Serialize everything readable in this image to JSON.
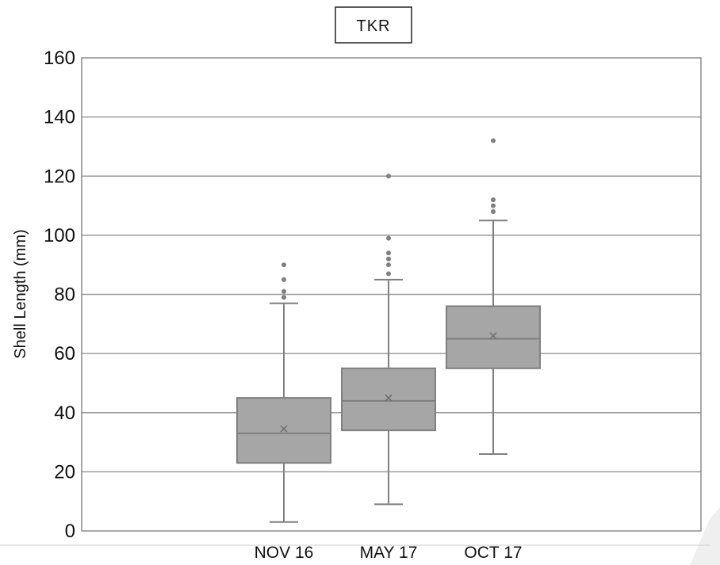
{
  "chart_data": {
    "type": "box",
    "title": "TKR",
    "ylabel": "Shell Length (mm)",
    "xlabel": "",
    "ylim": [
      0,
      160
    ],
    "yticks": [
      0,
      20,
      40,
      60,
      80,
      100,
      120,
      140,
      160
    ],
    "grid": true,
    "legend": "none",
    "box_color": "#a6a6a6",
    "categories": [
      "NOV 16",
      "MAY 17",
      "OCT 17"
    ],
    "boxes": [
      {
        "category": "NOV 16",
        "min": 3,
        "q1": 23,
        "median": 33,
        "q3": 45,
        "max": 77,
        "mean": 34.5,
        "outliers": [
          79,
          81,
          85,
          90
        ]
      },
      {
        "category": "MAY 17",
        "min": 9,
        "q1": 34,
        "median": 44,
        "q3": 55,
        "max": 85,
        "mean": 45,
        "outliers": [
          87,
          90,
          92,
          94,
          99,
          120
        ]
      },
      {
        "category": "OCT 17",
        "min": 26,
        "q1": 55,
        "median": 65,
        "q3": 76,
        "max": 105,
        "mean": 66,
        "outliers": [
          108,
          110,
          112,
          132
        ]
      }
    ]
  }
}
